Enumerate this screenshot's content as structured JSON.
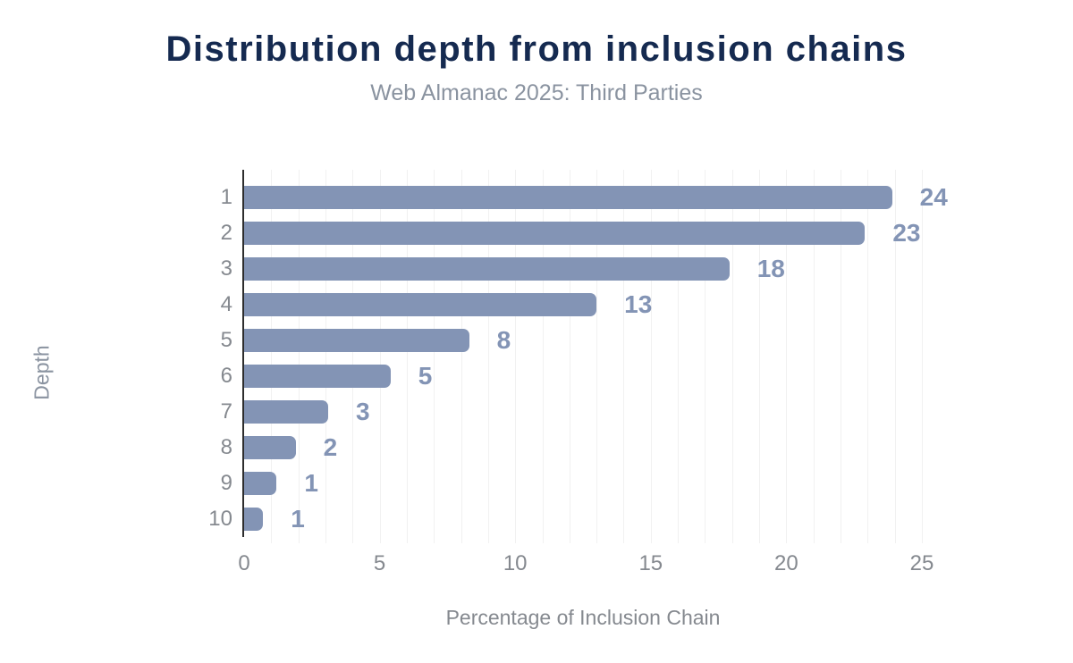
{
  "header": {
    "title": "Distribution depth from inclusion chains",
    "subtitle": "Web Almanac 2025: Third Parties"
  },
  "chart_data": {
    "type": "bar",
    "orientation": "horizontal",
    "title": "Distribution depth from inclusion chains",
    "subtitle": "Web Almanac 2025: Third Parties",
    "xlabel": "Percentage of Inclusion Chain",
    "ylabel": "Depth",
    "categories": [
      "1",
      "2",
      "3",
      "4",
      "5",
      "6",
      "7",
      "8",
      "9",
      "10"
    ],
    "values": [
      23.9,
      22.9,
      17.9,
      13.0,
      8.3,
      5.4,
      3.1,
      1.9,
      1.2,
      0.7
    ],
    "data_labels": [
      "24",
      "23",
      "18",
      "13",
      "8",
      "5",
      "3",
      "2",
      "1",
      "1"
    ],
    "xlim": [
      0,
      25
    ],
    "xticks": [
      0,
      5,
      10,
      15,
      20,
      25
    ],
    "grid": "vertical gridlines every 1 unit, 0 to 25",
    "legend": "none",
    "colors": {
      "bar": "#8394b5",
      "data_label": "#8394b5",
      "title": "#152a50",
      "subtitle": "#8a93a0",
      "axis_tick_label": "#85898f",
      "axis_line": "#2d2d2d",
      "gridline": "#f1f1f1",
      "background": "#ffffff"
    }
  }
}
